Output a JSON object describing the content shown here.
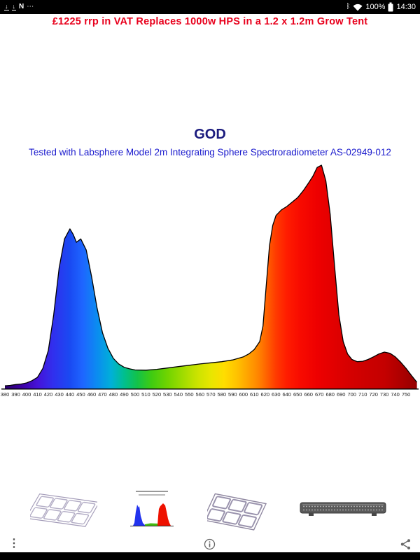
{
  "status_bar": {
    "time": "14:30",
    "battery_percent": "100%",
    "left_icons": [
      "download-icon",
      "download-icon",
      "nfc-icon",
      "more-status-icon"
    ],
    "right_icons": [
      "bluetooth-icon",
      "wifi-icon",
      "battery-icon"
    ],
    "nfc_glyph": "N",
    "more_glyph": "⋯",
    "download_glyph": "↓",
    "bluetooth_glyph": "ᛒ"
  },
  "promo": {
    "text": "£1225 rrp in VAT  Replaces 1000w HPS in a 1.2 x 1.2m Grow Tent",
    "color": "#e8001c"
  },
  "chart": {
    "title": "GOD",
    "subtitle": "Tested with Labsphere Model 2m Integrating Sphere Spectroradiometer AS-02949-012",
    "title_color": "#1b1b7e",
    "subtitle_color": "#1a1acd"
  },
  "chart_data": {
    "type": "area",
    "title": "GOD",
    "x": [
      380,
      385,
      390,
      395,
      400,
      405,
      410,
      415,
      420,
      425,
      430,
      435,
      440,
      443,
      446,
      450,
      455,
      460,
      465,
      470,
      475,
      480,
      485,
      490,
      495,
      500,
      510,
      520,
      530,
      540,
      550,
      560,
      570,
      580,
      590,
      600,
      605,
      610,
      615,
      618,
      621,
      624,
      627,
      630,
      635,
      640,
      645,
      650,
      655,
      660,
      664,
      668,
      672,
      676,
      680,
      684,
      688,
      692,
      696,
      700,
      705,
      710,
      715,
      720,
      725,
      730,
      735,
      740,
      745,
      750,
      755,
      760
    ],
    "values": [
      0.012,
      0.014,
      0.018,
      0.02,
      0.025,
      0.035,
      0.05,
      0.09,
      0.17,
      0.33,
      0.54,
      0.67,
      0.715,
      0.69,
      0.655,
      0.67,
      0.62,
      0.5,
      0.36,
      0.25,
      0.18,
      0.135,
      0.11,
      0.095,
      0.088,
      0.083,
      0.082,
      0.086,
      0.092,
      0.098,
      0.104,
      0.11,
      0.115,
      0.12,
      0.128,
      0.142,
      0.155,
      0.175,
      0.21,
      0.28,
      0.46,
      0.64,
      0.73,
      0.775,
      0.8,
      0.815,
      0.835,
      0.855,
      0.885,
      0.92,
      0.95,
      0.99,
      1.0,
      0.93,
      0.78,
      0.55,
      0.33,
      0.21,
      0.155,
      0.13,
      0.12,
      0.122,
      0.13,
      0.142,
      0.155,
      0.163,
      0.158,
      0.142,
      0.118,
      0.09,
      0.058,
      0.028
    ],
    "x_ticks": [
      380,
      390,
      400,
      410,
      420,
      430,
      440,
      450,
      460,
      470,
      480,
      490,
      500,
      510,
      520,
      530,
      540,
      550,
      560,
      570,
      580,
      590,
      600,
      610,
      620,
      630,
      640,
      650,
      660,
      670,
      680,
      690,
      700,
      710,
      720,
      730,
      740,
      750
    ],
    "ylim": [
      0,
      1
    ],
    "grid": false,
    "legend": false,
    "gradient_stops": [
      {
        "wl": 380,
        "color": "#2a006e"
      },
      {
        "wl": 395,
        "color": "#3c00a0"
      },
      {
        "wl": 410,
        "color": "#4612d8"
      },
      {
        "wl": 425,
        "color": "#3030ee"
      },
      {
        "wl": 440,
        "color": "#1a4af2"
      },
      {
        "wl": 452,
        "color": "#1e66ff"
      },
      {
        "wl": 465,
        "color": "#0b8cf0"
      },
      {
        "wl": 478,
        "color": "#00b0d8"
      },
      {
        "wl": 490,
        "color": "#00bf8f"
      },
      {
        "wl": 502,
        "color": "#12c24a"
      },
      {
        "wl": 515,
        "color": "#3ecb12"
      },
      {
        "wl": 530,
        "color": "#71d400"
      },
      {
        "wl": 545,
        "color": "#a3dc00"
      },
      {
        "wl": 558,
        "color": "#cce300"
      },
      {
        "wl": 570,
        "color": "#e8e600"
      },
      {
        "wl": 582,
        "color": "#ffdd00"
      },
      {
        "wl": 594,
        "color": "#ffc200"
      },
      {
        "wl": 604,
        "color": "#ffa400"
      },
      {
        "wl": 614,
        "color": "#ff8300"
      },
      {
        "wl": 622,
        "color": "#ff5f00"
      },
      {
        "wl": 630,
        "color": "#ff3a00"
      },
      {
        "wl": 640,
        "color": "#ff1d00"
      },
      {
        "wl": 652,
        "color": "#f80b00"
      },
      {
        "wl": 668,
        "color": "#ee0000"
      },
      {
        "wl": 685,
        "color": "#e00000"
      },
      {
        "wl": 700,
        "color": "#d40000"
      },
      {
        "wl": 715,
        "color": "#cb0000"
      },
      {
        "wl": 730,
        "color": "#c40000"
      },
      {
        "wl": 745,
        "color": "#ad0000"
      },
      {
        "wl": 760,
        "color": "#940000"
      }
    ]
  },
  "thumbnails": [
    {
      "name": "led-fixture-angled-thumbnail"
    },
    {
      "name": "spectrum-chart-thumbnail"
    },
    {
      "name": "led-fixture-top-thumbnail"
    },
    {
      "name": "led-bar-thumbnail"
    }
  ],
  "bottom_bar": {
    "icons": [
      "overflow-menu-icon",
      "info-icon",
      "share-icon"
    ],
    "overflow_glyph": "⋮"
  }
}
